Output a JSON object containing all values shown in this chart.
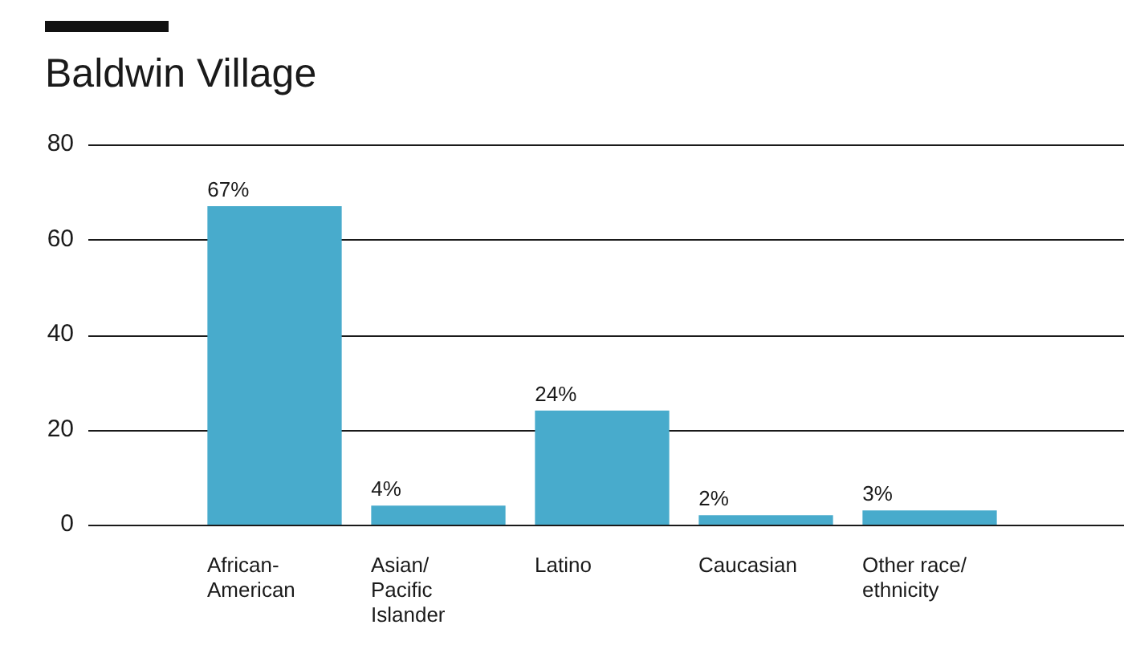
{
  "chart_data": {
    "type": "bar",
    "title": "Baldwin Village",
    "categories": [
      "African-American",
      "Asian/Pacific Islander",
      "Latino",
      "Caucasian",
      "Other race/ethnicity"
    ],
    "values": [
      67,
      4,
      24,
      2,
      3
    ],
    "value_labels": [
      "67%",
      "4%",
      "24%",
      "2%",
      "3%"
    ],
    "color": "#48abcc",
    "ylim": [
      0,
      80
    ],
    "yticks": [
      0,
      20,
      40,
      60,
      80
    ],
    "grid": "y",
    "legend": false
  }
}
